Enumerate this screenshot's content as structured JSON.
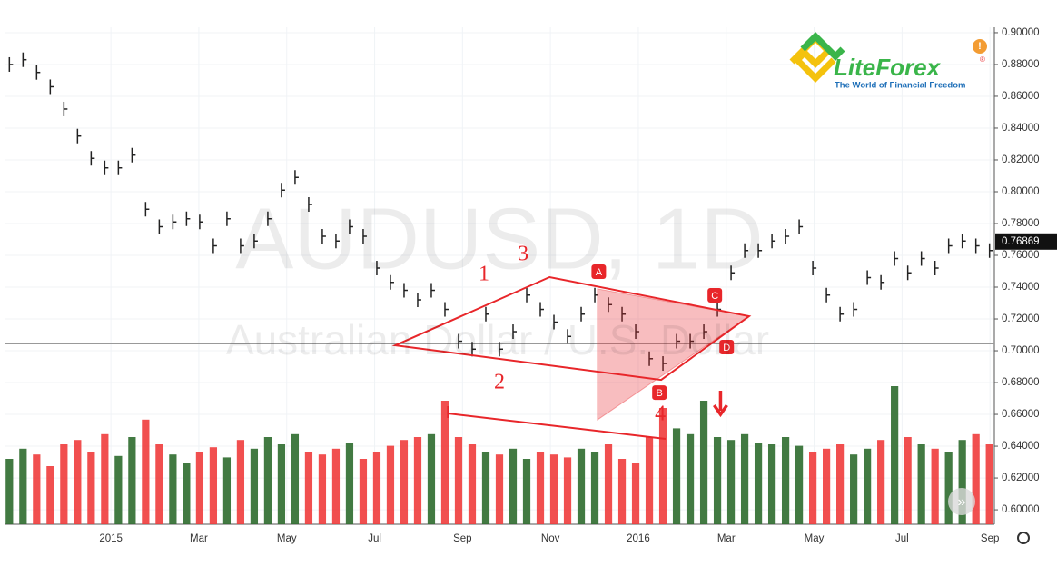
{
  "chart_data": {
    "type": "ohlc",
    "watermark": "AUDUSD, 1D",
    "subtitle": "Australian Dollar / U.S. Dollar",
    "brand": {
      "name": "LiteForex",
      "tagline": "The World of Financial Freedom",
      "mark": "®",
      "badge": "!"
    },
    "x": [
      -2.31,
      -2.0,
      -1.69,
      -1.38,
      -1.07,
      -0.76,
      -0.45,
      -0.14,
      0.17,
      0.48,
      0.79,
      1.1,
      1.41,
      1.72,
      2.02,
      2.33,
      2.64,
      2.95,
      3.26,
      3.57,
      3.88,
      4.19,
      4.5,
      4.81,
      5.12,
      5.43,
      5.74,
      6.05,
      6.36,
      6.67,
      6.98,
      7.29,
      7.6,
      7.91,
      8.22,
      8.53,
      8.84,
      9.15,
      9.46,
      9.77,
      10.08,
      10.39,
      10.7,
      11.01,
      11.32,
      11.63,
      11.94,
      12.25,
      12.56,
      12.87,
      13.18,
      13.49,
      13.8,
      14.11,
      14.42,
      14.73,
      15.04,
      15.35,
      15.66,
      15.97,
      16.28,
      16.59,
      16.9,
      17.21,
      17.52,
      17.83,
      18.13,
      18.44,
      18.75,
      19.06,
      19.37,
      19.68,
      19.99
    ],
    "values": [
      0.88,
      0.883,
      0.875,
      0.866,
      0.852,
      0.835,
      0.821,
      0.815,
      0.815,
      0.823,
      0.789,
      0.778,
      0.781,
      0.783,
      0.781,
      0.766,
      0.783,
      0.766,
      0.769,
      0.783,
      0.801,
      0.809,
      0.792,
      0.772,
      0.769,
      0.778,
      0.772,
      0.752,
      0.743,
      0.738,
      0.732,
      0.738,
      0.726,
      0.706,
      0.701,
      0.723,
      0.701,
      0.712,
      0.735,
      0.726,
      0.718,
      0.709,
      0.723,
      0.735,
      0.729,
      0.723,
      0.712,
      0.695,
      0.692,
      0.706,
      0.706,
      0.712,
      0.726,
      0.749,
      0.763,
      0.763,
      0.769,
      0.772,
      0.778,
      0.752,
      0.735,
      0.723,
      0.726,
      0.746,
      0.743,
      0.758,
      0.749,
      0.758,
      0.752,
      0.766,
      0.769,
      0.766,
      0.763
    ],
    "volume": [
      45,
      52,
      48,
      40,
      55,
      58,
      50,
      62,
      47,
      60,
      72,
      55,
      48,
      42,
      50,
      53,
      46,
      58,
      52,
      60,
      55,
      62,
      50,
      48,
      52,
      56,
      45,
      50,
      54,
      58,
      60,
      62,
      85,
      60,
      55,
      50,
      48,
      52,
      45,
      50,
      48,
      46,
      52,
      50,
      55,
      45,
      42,
      60,
      80,
      66,
      62,
      85,
      60,
      58,
      62,
      56,
      55,
      60,
      54,
      50,
      52,
      55,
      48,
      52,
      58,
      95,
      60,
      55,
      52,
      50,
      58,
      62,
      55
    ],
    "volume_lim": [
      0,
      100
    ],
    "color": "#222222",
    "up_color": "#2e6b2e",
    "down_color": "#f03c3c",
    "xlim": [
      -2.42,
      20.1
    ],
    "xticks": [
      {
        "value": 0,
        "label": "2015"
      },
      {
        "value": 2,
        "label": "Mar"
      },
      {
        "value": 4,
        "label": "May"
      },
      {
        "value": 6,
        "label": "Jul"
      },
      {
        "value": 8,
        "label": "Sep"
      },
      {
        "value": 10,
        "label": "Nov"
      },
      {
        "value": 12,
        "label": "2016"
      },
      {
        "value": 14,
        "label": "Mar"
      },
      {
        "value": 16,
        "label": "May"
      },
      {
        "value": 18,
        "label": "Jul"
      },
      {
        "value": 20,
        "label": "Sep"
      }
    ],
    "ylim": [
      0.5909,
      0.9034
    ],
    "yticks": [
      {
        "value": 0.6,
        "label": "0.60000"
      },
      {
        "value": 0.62,
        "label": "0.62000"
      },
      {
        "value": 0.64,
        "label": "0.64000"
      },
      {
        "value": 0.66,
        "label": "0.66000"
      },
      {
        "value": 0.68,
        "label": "0.68000"
      },
      {
        "value": 0.7,
        "label": "0.70000"
      },
      {
        "value": 0.72,
        "label": "0.72000"
      },
      {
        "value": 0.74,
        "label": "0.74000"
      },
      {
        "value": 0.76,
        "label": "0.76000"
      },
      {
        "value": 0.78,
        "label": "0.78000"
      },
      {
        "value": 0.8,
        "label": "0.80000"
      },
      {
        "value": 0.82,
        "label": "0.82000"
      },
      {
        "value": 0.84,
        "label": "0.84000"
      },
      {
        "value": 0.86,
        "label": "0.86000"
      },
      {
        "value": 0.88,
        "label": "0.88000"
      },
      {
        "value": 0.9,
        "label": "0.90000"
      }
    ],
    "grid": true,
    "last_price": {
      "value": 0.76869,
      "label": "0.76869"
    },
    "level": 0.7043,
    "annotation_color": "#e8262a",
    "diamond": [
      [
        6.47,
        0.7034
      ],
      [
        9.98,
        0.7463
      ],
      [
        14.52,
        0.7217
      ],
      [
        12.52,
        0.6817
      ]
    ],
    "triangle": [
      [
        11.07,
        0.7389
      ],
      [
        11.07,
        0.6566
      ],
      [
        14.52,
        0.7217
      ]
    ],
    "volume_line": [
      [
        7.67,
        0.6606
      ],
      [
        12.62,
        0.6446
      ]
    ],
    "labels": [
      {
        "text": "1",
        "x": 8.49,
        "y": 0.7474
      },
      {
        "text": "2",
        "x": 8.84,
        "y": 0.6794
      },
      {
        "text": "3",
        "x": 9.38,
        "y": 0.76
      },
      {
        "text": "4",
        "x": 12.5,
        "y": 0.6594
      }
    ],
    "points": [
      {
        "text": "A",
        "x": 11.1,
        "y": 0.7497
      },
      {
        "text": "B",
        "x": 12.48,
        "y": 0.6737
      },
      {
        "text": "C",
        "x": 13.74,
        "y": 0.7349
      },
      {
        "text": "D",
        "x": 14.01,
        "y": 0.7023
      }
    ],
    "arrow": [
      13.87,
      0.66
    ]
  }
}
